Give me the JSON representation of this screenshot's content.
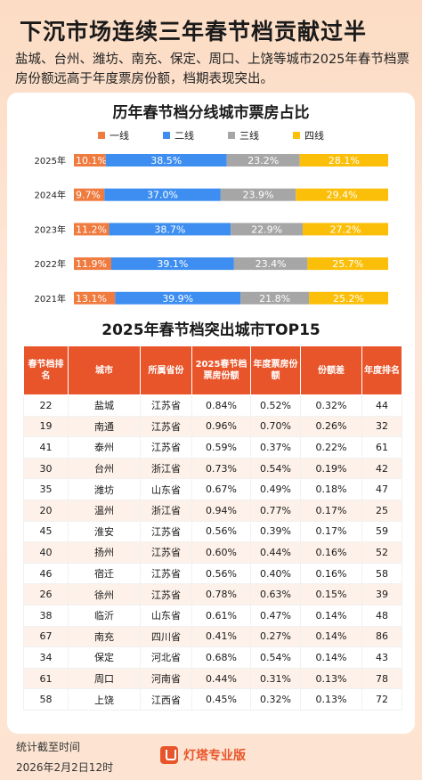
{
  "header": {
    "title": "下沉市场连续三年春节档贡献过半",
    "subtitle": "盐城、台州、潍坊、南充、保定、周口、上饶等城市2025年春节档票房份额远高于年度票房份额，档期表现突出。"
  },
  "chart_title": "历年春节档分线城市票房占比",
  "table_title": "2025年春节档突出城市TOP15",
  "chart_data": [
    {
      "type": "bar",
      "stacked": true,
      "orientation": "horizontal",
      "title": "历年春节档分线城市票房占比",
      "legend_position": "top",
      "categories": [
        "2025年",
        "2024年",
        "2023年",
        "2022年",
        "2021年"
      ],
      "series": [
        {
          "name": "一线",
          "color": "#f07b3f",
          "values": [
            10.1,
            9.7,
            11.2,
            11.9,
            13.1
          ],
          "labels": [
            "10.1%",
            "9.7%",
            "11.2%",
            "11.9%",
            "13.1%"
          ]
        },
        {
          "name": "二线",
          "color": "#3d8ef0",
          "values": [
            38.5,
            37.0,
            38.7,
            39.1,
            39.9
          ],
          "labels": [
            "38.5%",
            "37.0%",
            "38.7%",
            "39.1%",
            "39.9%"
          ]
        },
        {
          "name": "三线",
          "color": "#a6a6a6",
          "values": [
            23.2,
            23.9,
            22.9,
            23.4,
            21.8
          ],
          "labels": [
            "23.2%",
            "23.9%",
            "22.9%",
            "23.4%",
            "21.8%"
          ]
        },
        {
          "name": "四线",
          "color": "#fbbf0a",
          "values": [
            28.1,
            29.4,
            27.2,
            25.7,
            25.2
          ],
          "labels": [
            "28.1%",
            "29.4%",
            "27.2%",
            "25.7%",
            "25.2%"
          ]
        }
      ]
    },
    {
      "type": "table",
      "title": "2025年春节档突出城市TOP15",
      "columns": [
        "春节档排名",
        "城市",
        "所属省份",
        "2025春节档票房份额",
        "年度票房份额",
        "份额差",
        "年度排名"
      ],
      "rows": [
        [
          "22",
          "盐城",
          "江苏省",
          "0.84%",
          "0.52%",
          "0.32%",
          "44"
        ],
        [
          "19",
          "南通",
          "江苏省",
          "0.96%",
          "0.70%",
          "0.26%",
          "32"
        ],
        [
          "41",
          "泰州",
          "江苏省",
          "0.59%",
          "0.37%",
          "0.22%",
          "61"
        ],
        [
          "30",
          "台州",
          "浙江省",
          "0.73%",
          "0.54%",
          "0.19%",
          "42"
        ],
        [
          "35",
          "潍坊",
          "山东省",
          "0.67%",
          "0.49%",
          "0.18%",
          "47"
        ],
        [
          "20",
          "温州",
          "浙江省",
          "0.94%",
          "0.77%",
          "0.17%",
          "25"
        ],
        [
          "45",
          "淮安",
          "江苏省",
          "0.56%",
          "0.39%",
          "0.17%",
          "59"
        ],
        [
          "40",
          "扬州",
          "江苏省",
          "0.60%",
          "0.44%",
          "0.16%",
          "52"
        ],
        [
          "46",
          "宿迁",
          "江苏省",
          "0.56%",
          "0.40%",
          "0.16%",
          "58"
        ],
        [
          "26",
          "徐州",
          "江苏省",
          "0.78%",
          "0.63%",
          "0.15%",
          "39"
        ],
        [
          "38",
          "临沂",
          "山东省",
          "0.61%",
          "0.47%",
          "0.14%",
          "48"
        ],
        [
          "67",
          "南充",
          "四川省",
          "0.41%",
          "0.27%",
          "0.14%",
          "86"
        ],
        [
          "34",
          "保定",
          "河北省",
          "0.68%",
          "0.54%",
          "0.14%",
          "43"
        ],
        [
          "61",
          "周口",
          "河南省",
          "0.44%",
          "0.31%",
          "0.13%",
          "78"
        ],
        [
          "58",
          "上饶",
          "江西省",
          "0.45%",
          "0.32%",
          "0.13%",
          "72"
        ]
      ]
    }
  ],
  "table_headers": [
    "春节档排名",
    "城市",
    "所属省份",
    "2025春节档票房份额",
    "年度票房份额",
    "份额差",
    "年度排名"
  ],
  "footer": {
    "label": "统计截至时间",
    "time": "2026年2月2日12时",
    "brand": "灯塔专业版",
    "logo_icon": "lighthouse-logo-icon"
  }
}
